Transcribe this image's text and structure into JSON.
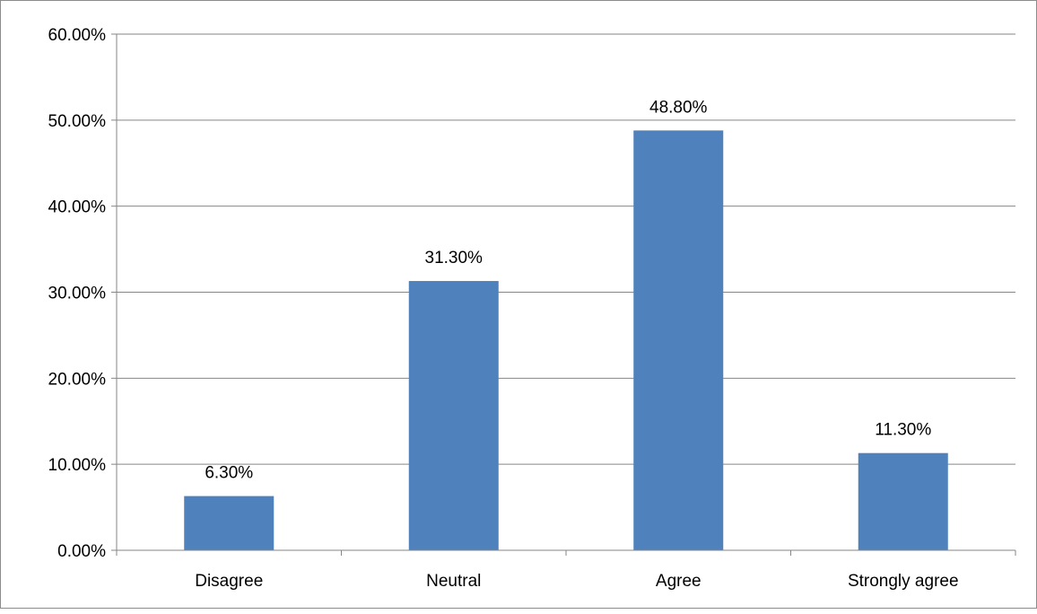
{
  "chart_data": {
    "type": "bar",
    "categories": [
      "Disagree",
      "Neutral",
      "Agree",
      "Strongly agree"
    ],
    "values": [
      6.3,
      31.3,
      48.8,
      11.3
    ],
    "data_labels": [
      "6.30%",
      "31.30%",
      "48.80%",
      "11.30%"
    ],
    "yticks": [
      0,
      10,
      20,
      30,
      40,
      50,
      60
    ],
    "ytick_labels": [
      "0.00%",
      "10.00%",
      "20.00%",
      "30.00%",
      "40.00%",
      "50.00%",
      "60.00%"
    ],
    "ylim": [
      0,
      60
    ],
    "grid": true,
    "legend": "none",
    "bar_color": "#4f81bd",
    "gridline_color": "#868686"
  }
}
